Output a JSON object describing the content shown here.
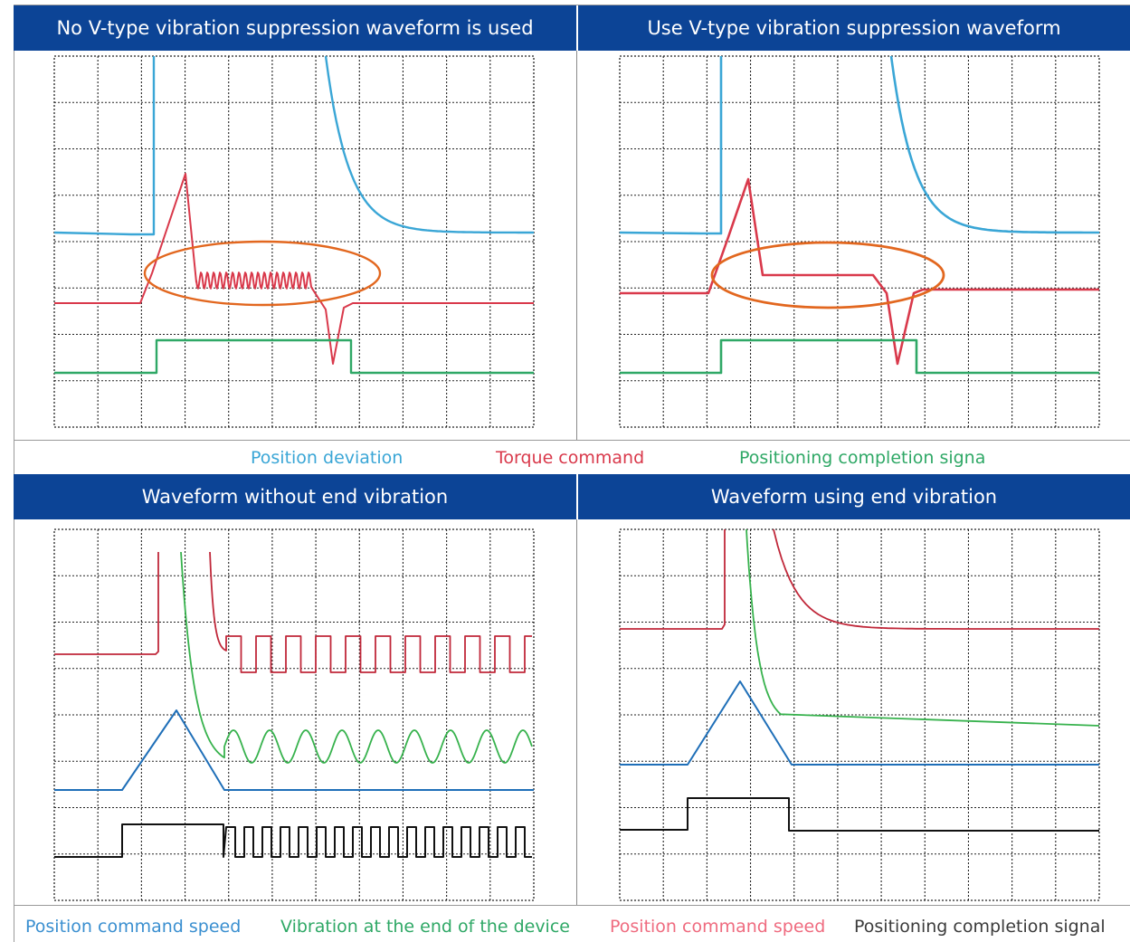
{
  "top": {
    "left_title": "No V-type vibration suppression waveform is used",
    "right_title": "Use V-type vibration suppression waveform",
    "legend": [
      {
        "text": "Position deviation",
        "color": "#3aa6d6"
      },
      {
        "text": "Torque command",
        "color": "#d9394b"
      },
      {
        "text": "Positioning completion signa",
        "color": "#2fa866"
      }
    ]
  },
  "bottom": {
    "left_title": "Waveform without end vibration",
    "right_title": "Waveform using end vibration",
    "legend": [
      {
        "text": "Position command speed",
        "color": "#3a8fd0"
      },
      {
        "text": "Vibration at the end of the device",
        "color": "#2fa866"
      },
      {
        "text": "Position command speed",
        "color": "#ef6b7f"
      },
      {
        "text": "Positioning completion signal",
        "color": "#3b3b3b"
      }
    ]
  },
  "colors": {
    "header_bg": "#0c4496",
    "deviation": "#3aa6d6",
    "torque": "#d9394b",
    "completion": "#2fa866",
    "ellipse": "#e2671f",
    "speed": "#1f6fb8",
    "vibration": "#37b24d",
    "red_trace": "#c0283a",
    "signal": "#111111"
  }
}
